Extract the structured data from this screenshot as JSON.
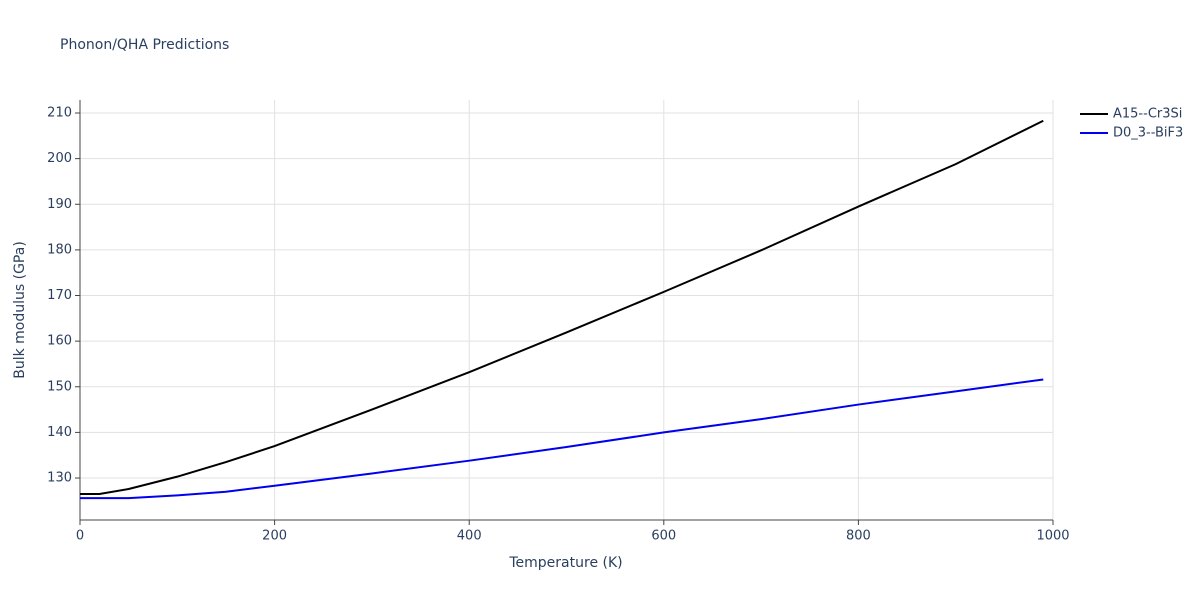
{
  "chart_data": {
    "type": "line",
    "title": "Phonon/QHA Predictions",
    "x_label": "Temperature (K)",
    "y_label": "Bulk modulus (GPa)",
    "x": [
      0,
      20,
      50,
      100,
      150,
      200,
      300,
      400,
      500,
      600,
      700,
      800,
      900,
      990
    ],
    "series": [
      {
        "name": "A15--Cr3Si",
        "color": "#000000",
        "values": [
          126.5,
          126.5,
          127.6,
          130.3,
          133.5,
          137.0,
          145.0,
          153.2,
          161.9,
          170.8,
          179.9,
          189.5,
          198.8,
          208.3
        ]
      },
      {
        "name": "D0_3--BiF3",
        "color": "#0000ee",
        "values": [
          125.6,
          125.6,
          125.6,
          126.2,
          127.0,
          128.3,
          131.0,
          133.8,
          136.8,
          140.0,
          142.9,
          146.1,
          149.0,
          151.6
        ]
      }
    ],
    "xlim": [
      0,
      1000
    ],
    "xticks": [
      0,
      200,
      400,
      600,
      800,
      1000
    ],
    "ylim": [
      120.8,
      212.85
    ],
    "yticks": [
      130,
      140,
      150,
      160,
      170,
      180,
      190,
      200,
      210
    ],
    "grid": true,
    "legend": "right"
  }
}
